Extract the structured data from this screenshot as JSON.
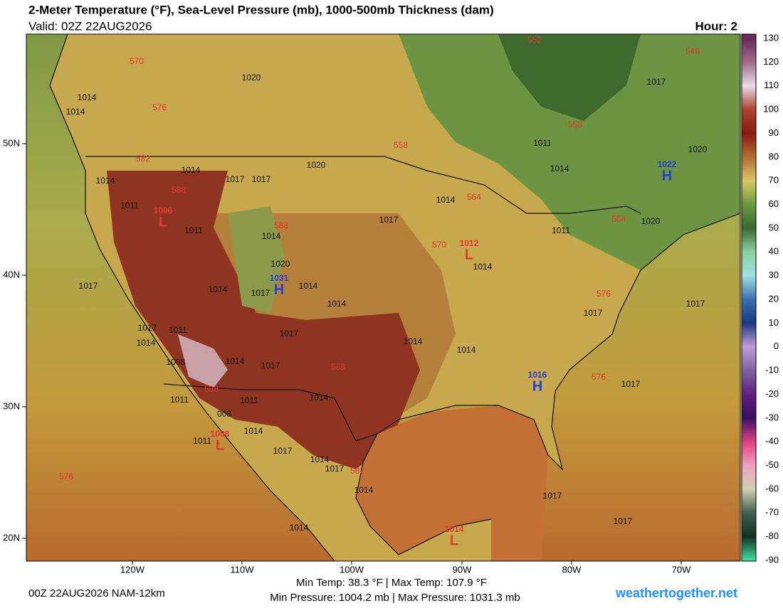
{
  "header": {
    "title": "2-Meter Temperature (°F), Sea-Level Pressure (mb), 1000-500mb Thickness (dam)",
    "valid": "Valid: 02Z 22AUG2026",
    "hour": "Hour: 2"
  },
  "latitude_labels": [
    "50N",
    "40N",
    "30N",
    "20N"
  ],
  "longitude_labels": [
    "120W",
    "110W",
    "100W",
    "90W",
    "80W",
    "70W"
  ],
  "colorbar": {
    "ticks": [
      130,
      120,
      110,
      100,
      90,
      80,
      70,
      60,
      50,
      40,
      30,
      20,
      10,
      0,
      -10,
      -20,
      -30,
      -40,
      -50,
      -60,
      -70,
      -80,
      -90
    ],
    "colors": [
      "#6a2a5a",
      "#a06b8a",
      "#e8dce8",
      "#b04030",
      "#8a1a10",
      "#b07030",
      "#d8c860",
      "#6a9a40",
      "#3a6a30",
      "#8ad0a0",
      "#a0e0e0",
      "#3a70b0",
      "#1a3a80",
      "#c0a0d8",
      "#8060a0",
      "#602080",
      "#3a1060",
      "#e04080",
      "#f0a0c0",
      "#d0d0b0",
      "#406050",
      "#103020",
      "#40e0a0"
    ]
  },
  "pressure_labels": [
    "1020",
    "1014",
    "1014",
    "1017",
    "1011",
    "1020",
    "1014",
    "1020",
    "1014",
    "1014",
    "1017",
    "1017",
    "1011",
    "1014",
    "1017",
    "1011",
    "1014",
    "1011",
    "1020",
    "1020",
    "1014",
    "1017",
    "1014",
    "1014",
    "1017",
    "1014",
    "1017",
    "1017",
    "1017",
    "1011",
    "1014",
    "1017",
    "1014",
    "1014",
    "1008",
    "1014",
    "1017",
    "1014",
    "1017",
    "1011",
    "1011",
    "008",
    "1014",
    "1011",
    "1017",
    "1014",
    "1017",
    "1014",
    "1017",
    "1017",
    "1014"
  ],
  "thickness_labels": [
    "570",
    "552",
    "546",
    "576",
    "558",
    "558",
    "582",
    "588",
    "564",
    "564",
    "588",
    "570",
    "576",
    "588",
    "576",
    "588",
    "582",
    "576"
  ],
  "highs": [
    {
      "value_label": "1031",
      "symbol": "H"
    },
    {
      "value_label": "1022",
      "symbol": "H"
    },
    {
      "value_label": "1016",
      "symbol": "H"
    }
  ],
  "lows": [
    {
      "value_label": "1006",
      "symbol": "L"
    },
    {
      "value_label": "1012",
      "symbol": "L"
    },
    {
      "value_label": "1008",
      "symbol": "L"
    },
    {
      "value_label": "1014",
      "symbol": "L"
    }
  ],
  "footer": {
    "run": "00Z 22AUG2026 NAM-12km",
    "temps": "Min Temp:  38.3 °F | Max Temp: 107.9 °F",
    "pressures": "Min Pressure: 1004.2 mb | Max Pressure: 1031.3 mb",
    "site": "weathertogether.net"
  }
}
